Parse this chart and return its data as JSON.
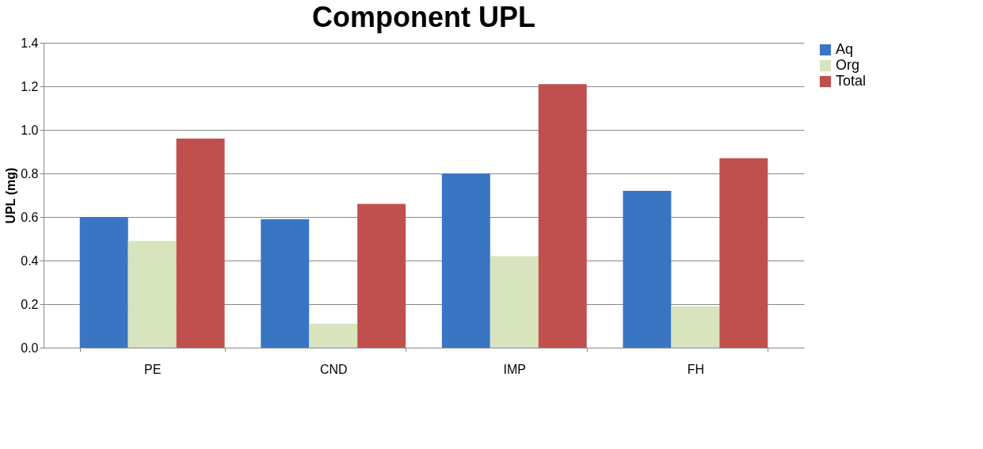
{
  "chart_data": {
    "type": "bar",
    "title": "Component UPL",
    "ylabel": "UPL (mg)",
    "categories": [
      "PE",
      "CND",
      "IMP",
      "FH"
    ],
    "series": [
      {
        "name": "Aq",
        "color": "#3a75c4",
        "values": [
          0.6,
          0.59,
          0.8,
          0.72
        ]
      },
      {
        "name": "Org",
        "color": "#d7e4bd",
        "values": [
          0.49,
          0.11,
          0.42,
          0.19
        ]
      },
      {
        "name": "Total",
        "color": "#c0504d",
        "values": [
          0.96,
          0.66,
          1.21,
          0.87
        ]
      }
    ],
    "ylim": [
      0,
      1.4
    ],
    "yticks": [
      {
        "value": 0,
        "label": "0.0"
      },
      0.2,
      0.4,
      0.6,
      0.8,
      {
        "value": 1.0,
        "label": "1.0"
      },
      1.2,
      1.4
    ],
    "grid": "y",
    "legend": "right"
  }
}
